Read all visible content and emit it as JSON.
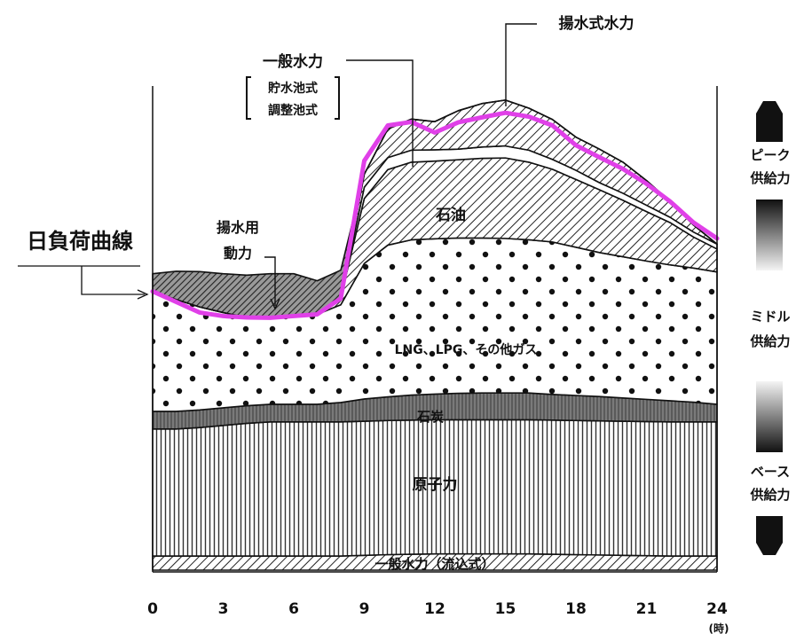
{
  "chart_data": {
    "type": "area",
    "title": "",
    "xlabel": "(時)",
    "ylabel": "",
    "x": [
      0,
      1,
      2,
      3,
      4,
      5,
      6,
      7,
      8,
      9,
      10,
      11,
      12,
      13,
      14,
      15,
      16,
      17,
      18,
      19,
      20,
      21,
      22,
      23,
      24
    ],
    "xticks": [
      "0",
      "3",
      "6",
      "9",
      "12",
      "15",
      "18",
      "21",
      "24"
    ],
    "xlim": [
      0,
      24
    ],
    "ylim": [
      0,
      100
    ],
    "series": [
      {
        "name": "一般水力（流込式）",
        "values": [
          4,
          4,
          4,
          4,
          4,
          4,
          4,
          4,
          4,
          4.2,
          4.4,
          4.5,
          4.6,
          4.6,
          4.6,
          4.6,
          4.6,
          4.5,
          4.4,
          4.3,
          4.2,
          4.1,
          4,
          4,
          4
        ]
      },
      {
        "name": "原子力",
        "values": [
          36,
          36,
          36.4,
          37,
          37.6,
          38,
          38,
          38,
          38,
          38,
          38,
          38,
          38,
          38,
          38,
          38,
          38,
          38,
          38,
          38,
          38,
          38,
          38,
          38,
          38
        ]
      },
      {
        "name": "石炭",
        "values": [
          5,
          5,
          5,
          5,
          5,
          5,
          5,
          5,
          5.5,
          6.3,
          6.7,
          7.1,
          7.3,
          7.5,
          7.6,
          7.6,
          7.6,
          7.3,
          7.1,
          6.9,
          6.6,
          6.3,
          6,
          5.6,
          5
        ]
      },
      {
        "name": "LNG、LPG、その他ガス",
        "values": [
          34,
          31.7,
          29.2,
          27,
          25,
          24.5,
          24.7,
          25.5,
          27.7,
          38.4,
          43,
          44,
          44,
          44,
          43.9,
          43.8,
          43.4,
          43.2,
          42,
          40.8,
          40,
          39.2,
          38.5,
          38,
          37.5
        ]
      },
      {
        "name": "石油",
        "values": [
          0,
          0,
          0,
          0,
          0,
          0,
          0,
          0,
          2,
          18.4,
          21.4,
          22,
          22,
          22.2,
          22.6,
          22.8,
          22,
          20.6,
          19.2,
          17.8,
          16,
          14,
          12,
          8.8,
          6.5
        ]
      },
      {
        "name": "一般水力（貯水池式・調整池式）",
        "values": [
          0,
          0,
          0,
          0,
          0,
          0,
          0,
          0,
          0,
          3.2,
          3.4,
          3.4,
          3.2,
          3,
          3.2,
          3.4,
          3.4,
          2.8,
          2.6,
          2,
          2,
          1.8,
          1.5,
          1.4,
          1.4
        ]
      },
      {
        "name": "揚水式水力",
        "values": [
          0,
          0,
          0,
          0,
          0,
          0,
          0,
          0,
          0,
          3.7,
          8.1,
          8.8,
          8,
          10.9,
          12.3,
          13,
          11.9,
          11.3,
          9.4,
          9.5,
          8.8,
          7,
          4.5,
          2,
          0
        ]
      },
      {
        "name": "揚水用動力",
        "values": [
          5,
          8,
          10,
          11,
          12,
          12.5,
          12.3,
          9.5,
          7.8,
          0,
          0,
          0,
          0,
          0,
          0,
          0,
          0,
          0,
          0,
          0,
          0,
          0,
          0,
          0,
          0
        ]
      }
    ],
    "load_curve": {
      "name": "日負荷曲線",
      "values": [
        79,
        76,
        73,
        72,
        71.6,
        71.5,
        72,
        72.5,
        77,
        116,
        126,
        127,
        124,
        126.9,
        128.3,
        129.6,
        128.5,
        126,
        120.4,
        117,
        113.7,
        109.5,
        104.5,
        98.5,
        94
      ]
    },
    "annotations": {
      "pumping_power": [
        "揚水用",
        "動力"
      ],
      "general_hydro_top": "一般水力",
      "general_hydro_sub": [
        "貯水池式",
        "調整池式"
      ],
      "pumped_storage": "揚水式水力",
      "load_curve_label": "日負荷曲線"
    },
    "supply_scale": {
      "peak": [
        "ピーク",
        "供給力"
      ],
      "middle": [
        "ミドル",
        "供給力"
      ],
      "base": [
        "ベース",
        "供給力"
      ]
    },
    "colors": {
      "load_curve": "#e040e8",
      "load_curve_label": "#e040e8"
    }
  }
}
